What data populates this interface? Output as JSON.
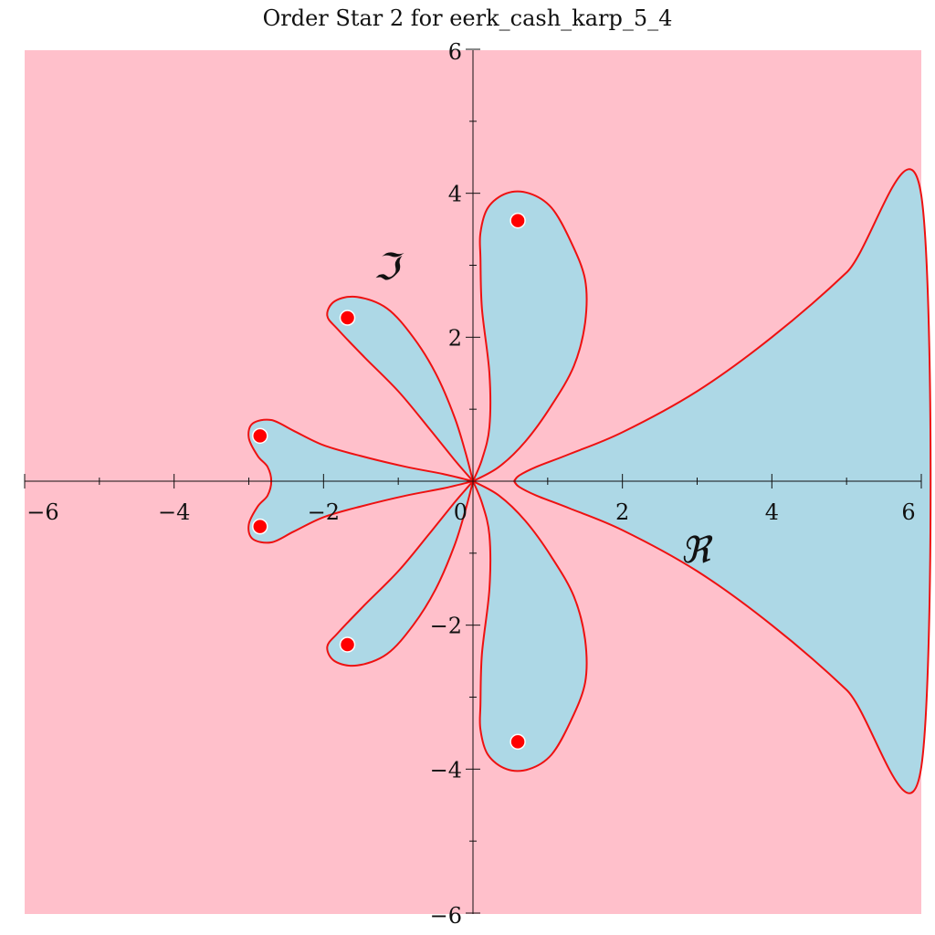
{
  "chart_data": {
    "type": "region-contour",
    "title": "Order Star 2 for eerk_cash_karp_5_4",
    "xlabel": "ℜ",
    "ylabel": "ℑ",
    "xlim": [
      -6,
      6
    ],
    "ylim": [
      -6,
      6
    ],
    "x_ticks": [
      -6,
      -4,
      -2,
      0,
      2,
      4,
      6
    ],
    "y_ticks": [
      -6,
      -4,
      -2,
      0,
      2,
      4,
      6
    ],
    "x_tick_labels": [
      "−6",
      "−4",
      "−2",
      "0",
      "2",
      "4",
      "6"
    ],
    "y_tick_labels": [
      "−6",
      "−4",
      "−2",
      "0",
      "2",
      "4",
      "6"
    ],
    "grid": false,
    "colors": {
      "outside_region": "#ffc0cb",
      "inside_region": "#add8e6",
      "boundary": "#ee1111",
      "pole_marker": "#ff0000",
      "axes": "#111111"
    },
    "poles": [
      {
        "x": 0.6,
        "y": 3.62
      },
      {
        "x": 0.6,
        "y": -3.62
      },
      {
        "x": -1.68,
        "y": 2.27
      },
      {
        "x": -1.68,
        "y": -2.27
      },
      {
        "x": -2.85,
        "y": 0.63
      },
      {
        "x": -2.85,
        "y": -0.63
      }
    ],
    "regions": [
      {
        "name": "upper-petal",
        "points": [
          [
            0,
            0
          ],
          [
            0.12,
            0.3
          ],
          [
            0.22,
            0.75
          ],
          [
            0.22,
            1.5
          ],
          [
            0.12,
            2.4
          ],
          [
            0.1,
            3.1
          ],
          [
            0.1,
            3.45
          ],
          [
            0.2,
            3.8
          ],
          [
            0.45,
            4.0
          ],
          [
            0.75,
            4.0
          ],
          [
            1.05,
            3.8
          ],
          [
            1.3,
            3.35
          ],
          [
            1.5,
            2.8
          ],
          [
            1.5,
            2.2
          ],
          [
            1.35,
            1.6
          ],
          [
            1.05,
            1.05
          ],
          [
            0.7,
            0.55
          ],
          [
            0.35,
            0.2
          ],
          [
            0,
            0
          ]
        ]
      },
      {
        "name": "upper-left-petal",
        "points": [
          [
            0,
            0
          ],
          [
            -0.25,
            0.3
          ],
          [
            -0.6,
            0.75
          ],
          [
            -1.0,
            1.25
          ],
          [
            -1.45,
            1.72
          ],
          [
            -1.8,
            2.1
          ],
          [
            -1.95,
            2.3
          ],
          [
            -1.85,
            2.5
          ],
          [
            -1.55,
            2.56
          ],
          [
            -1.15,
            2.4
          ],
          [
            -0.8,
            2.0
          ],
          [
            -0.5,
            1.5
          ],
          [
            -0.25,
            0.9
          ],
          [
            -0.1,
            0.4
          ],
          [
            0,
            0
          ]
        ]
      },
      {
        "name": "left-petal",
        "points": [
          [
            0,
            0
          ],
          [
            -0.4,
            0.1
          ],
          [
            -0.9,
            0.2
          ],
          [
            -1.5,
            0.35
          ],
          [
            -2.0,
            0.5
          ],
          [
            -2.4,
            0.7
          ],
          [
            -2.7,
            0.85
          ],
          [
            -2.95,
            0.8
          ],
          [
            -3.0,
            0.6
          ],
          [
            -2.88,
            0.35
          ],
          [
            -2.75,
            0.2
          ],
          [
            -2.7,
            0.0
          ],
          [
            -2.75,
            -0.2
          ],
          [
            -2.88,
            -0.35
          ],
          [
            -3.0,
            -0.6
          ],
          [
            -2.95,
            -0.8
          ],
          [
            -2.7,
            -0.85
          ],
          [
            -2.4,
            -0.7
          ],
          [
            -2.0,
            -0.5
          ],
          [
            -1.5,
            -0.35
          ],
          [
            -0.9,
            -0.2
          ],
          [
            -0.4,
            -0.1
          ],
          [
            0,
            0
          ]
        ]
      },
      {
        "name": "lower-left-petal",
        "points": [
          [
            0,
            0
          ],
          [
            -0.25,
            -0.3
          ],
          [
            -0.6,
            -0.75
          ],
          [
            -1.0,
            -1.25
          ],
          [
            -1.45,
            -1.72
          ],
          [
            -1.8,
            -2.1
          ],
          [
            -1.95,
            -2.3
          ],
          [
            -1.85,
            -2.5
          ],
          [
            -1.55,
            -2.56
          ],
          [
            -1.15,
            -2.4
          ],
          [
            -0.8,
            -2.0
          ],
          [
            -0.5,
            -1.5
          ],
          [
            -0.25,
            -0.9
          ],
          [
            -0.1,
            -0.4
          ],
          [
            0,
            0
          ]
        ]
      },
      {
        "name": "lower-petal",
        "points": [
          [
            0,
            0
          ],
          [
            0.12,
            -0.3
          ],
          [
            0.22,
            -0.75
          ],
          [
            0.22,
            -1.5
          ],
          [
            0.12,
            -2.4
          ],
          [
            0.1,
            -3.1
          ],
          [
            0.1,
            -3.45
          ],
          [
            0.2,
            -3.8
          ],
          [
            0.45,
            -4.0
          ],
          [
            0.75,
            -4.0
          ],
          [
            1.05,
            -3.8
          ],
          [
            1.3,
            -3.35
          ],
          [
            1.5,
            -2.8
          ],
          [
            1.5,
            -2.2
          ],
          [
            1.35,
            -1.6
          ],
          [
            1.05,
            -1.05
          ],
          [
            0.7,
            -0.55
          ],
          [
            0.35,
            -0.2
          ],
          [
            0,
            0
          ]
        ]
      },
      {
        "name": "right-region",
        "points": [
          [
            0.55,
            0
          ],
          [
            0.62,
            0.08
          ],
          [
            0.85,
            0.2
          ],
          [
            1.3,
            0.38
          ],
          [
            2.0,
            0.68
          ],
          [
            3.0,
            1.25
          ],
          [
            4.0,
            2.0
          ],
          [
            5.0,
            2.9
          ],
          [
            6.0,
            3.97
          ],
          [
            6.0,
            -3.97
          ],
          [
            5.0,
            -2.9
          ],
          [
            4.0,
            -2.0
          ],
          [
            3.0,
            -1.25
          ],
          [
            2.0,
            -0.68
          ],
          [
            1.3,
            -0.38
          ],
          [
            0.85,
            -0.2
          ],
          [
            0.62,
            -0.08
          ],
          [
            0.55,
            0
          ]
        ]
      }
    ]
  }
}
